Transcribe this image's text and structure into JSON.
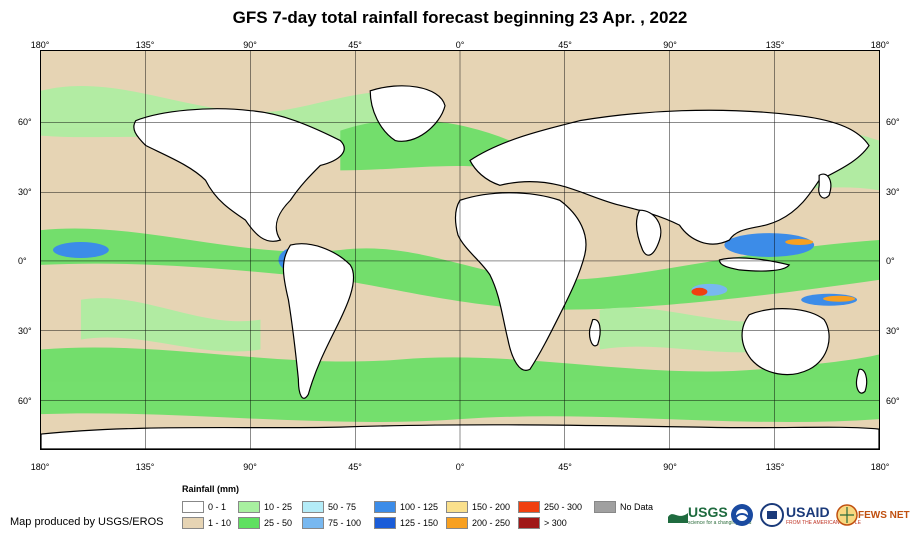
{
  "title": "GFS 7-day total rainfall forecast beginning 23 Apr. , 2022",
  "lon_labels_top": [
    "180°",
    "135°",
    "90°",
    "45°",
    "0°",
    "45°",
    "90°",
    "135°",
    "180°"
  ],
  "lon_labels_bottom": [
    "180°",
    "135°",
    "90°",
    "45°",
    "0°",
    "45°",
    "90°",
    "135°",
    "180°"
  ],
  "lat_labels_left": [
    "60°",
    "30°",
    "0°",
    "30°",
    "60°"
  ],
  "lat_labels_right": [
    "60°",
    "30°",
    "0°",
    "30°",
    "60°"
  ],
  "legend": {
    "title": "Rainfall (mm)",
    "items": [
      {
        "label": "0 - 1",
        "color": "#ffffff"
      },
      {
        "label": "1 - 10",
        "color": "#e6d4b4"
      },
      {
        "label": "10 - 25",
        "color": "#a8f0a0"
      },
      {
        "label": "25 - 50",
        "color": "#5fe060"
      },
      {
        "label": "50 - 75",
        "color": "#b4ecf8"
      },
      {
        "label": "75 - 100",
        "color": "#78b8f0"
      },
      {
        "label": "100 - 125",
        "color": "#3c8ce8"
      },
      {
        "label": "125 - 150",
        "color": "#1a5cd8"
      },
      {
        "label": "150 - 200",
        "color": "#fae08c"
      },
      {
        "label": "200 - 250",
        "color": "#f8a020"
      },
      {
        "label": "250 - 300",
        "color": "#f04010"
      },
      {
        "label": "> 300",
        "color": "#a01818"
      },
      {
        "label": "No Data",
        "color": "#a0a0a0"
      }
    ]
  },
  "credit": "Map produced by USGS/EROS",
  "logos": {
    "usgs": "USGS",
    "usgs_tagline": "science for a changing world",
    "usaid": "USAID",
    "usaid_tagline": "FROM THE AMERICAN PEOPLE",
    "fews": "FEWS NET"
  }
}
